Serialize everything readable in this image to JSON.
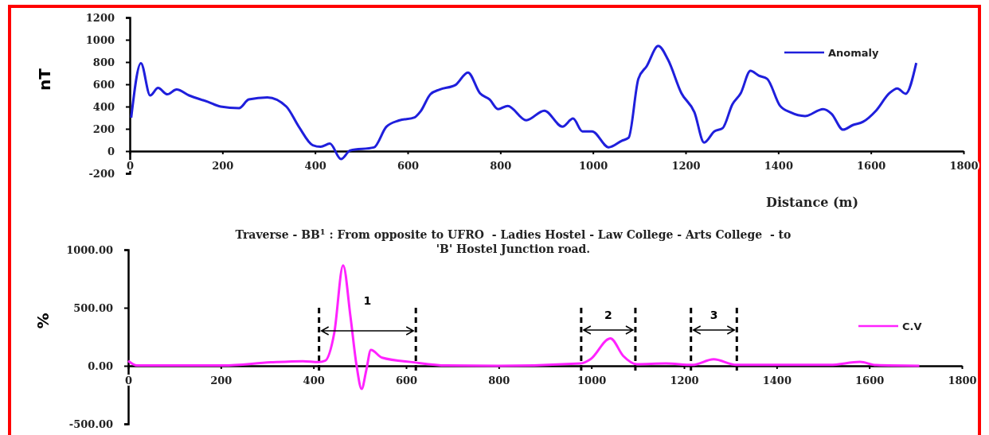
{
  "chart_data": [
    {
      "type": "line",
      "xlabel": "Distance (m)",
      "ylabel": "nT",
      "legend": "top right",
      "xlim": [
        0,
        1800
      ],
      "ylim": [
        -200,
        1200
      ],
      "xticks": [
        0,
        200,
        400,
        600,
        800,
        1000,
        1200,
        1400,
        1600,
        1800
      ],
      "yticks": [
        -200,
        0,
        200,
        400,
        600,
        800,
        1000,
        1200
      ],
      "x": [
        3,
        24,
        44,
        61,
        81,
        101,
        128,
        169,
        196,
        236,
        257,
        297,
        338,
        365,
        395,
        412,
        432,
        456,
        476,
        527,
        554,
        581,
        615,
        628,
        649,
        669,
        703,
        730,
        756,
        777,
        795,
        816,
        856,
        895,
        934,
        957,
        977,
        998,
        1034,
        1062,
        1077,
        1098,
        1116,
        1141,
        1162,
        1191,
        1219,
        1240,
        1262,
        1280,
        1301,
        1319,
        1340,
        1358,
        1376,
        1404,
        1426,
        1458,
        1497,
        1515,
        1540,
        1561,
        1583,
        1611,
        1640,
        1657,
        1675,
        1698
      ],
      "series": [
        {
          "name": "Anomaly",
          "color": "#1f1fdc",
          "values": [
            300,
            790,
            500,
            567,
            510,
            553,
            500,
            442,
            400,
            386,
            464,
            483,
            400,
            219,
            53,
            39,
            67,
            -72,
            6,
            33,
            219,
            275,
            303,
            358,
            511,
            553,
            594,
            706,
            520,
            463,
            377,
            406,
            277,
            363,
            220,
            292,
            177,
            177,
            34,
            92,
            120,
            649,
            763,
            944,
            821,
            520,
            349,
            77,
            177,
            206,
            420,
            520,
            721,
            678,
            649,
            406,
            349,
            315,
            377,
            335,
            192,
            234,
            263,
            363,
            520,
            563,
            515,
            792
          ]
        }
      ]
    },
    {
      "type": "line",
      "title": "Traverse - BB$^{1}$ : From opposite to UFRO  - Ladies Hostel - Law College - Arts College  - to 'B' Hostel Junction road.",
      "ylabel": "%",
      "legend": "right",
      "xlim": [
        0,
        1800
      ],
      "ylim": [
        -500,
        1000
      ],
      "xticks": [
        0,
        200,
        400,
        600,
        800,
        1000,
        1200,
        1400,
        1600,
        1800
      ],
      "yticks": [
        {
          "value": -500,
          "label": "-500.00"
        },
        {
          "value": 0,
          "label": "0.00"
        },
        {
          "value": 500,
          "label": "500.00"
        },
        {
          "value": 1000,
          "label": "1000.00"
        }
      ],
      "x": [
        0,
        19,
        205,
        308,
        377,
        411,
        425,
        445,
        464,
        480,
        493,
        504,
        514,
        524,
        548,
        617,
        686,
        800,
        977,
        998,
        1041,
        1069,
        1098,
        1161,
        1218,
        1264,
        1313,
        1515,
        1580,
        1615,
        1708
      ],
      "series": [
        {
          "name": "C.V",
          "color": "#ff22ff",
          "values": [
            43,
            3,
            3,
            30,
            40,
            32,
            43,
            286,
            865,
            420,
            3,
            -199,
            -38,
            137,
            70,
            30,
            3,
            0,
            20,
            56,
            237,
            84,
            14,
            20,
            8,
            56,
            8,
            8,
            34,
            6,
            0
          ]
        }
      ],
      "ref_lines": [
        {
          "axis": "x",
          "value": 412,
          "color": "#000000",
          "line_style": "dashed"
        },
        {
          "axis": "x",
          "value": 621,
          "color": "#000000",
          "line_style": "dashed"
        },
        {
          "axis": "x",
          "value": 978,
          "color": "#000000",
          "line_style": "dashed"
        },
        {
          "axis": "x",
          "value": 1095,
          "color": "#000000",
          "line_style": "dashed"
        },
        {
          "axis": "x",
          "value": 1215,
          "color": "#000000",
          "line_style": "dashed"
        },
        {
          "axis": "x",
          "value": 1314,
          "color": "#000000",
          "line_style": "dashed"
        }
      ],
      "annotations": [
        "1",
        "2",
        "3"
      ]
    }
  ]
}
